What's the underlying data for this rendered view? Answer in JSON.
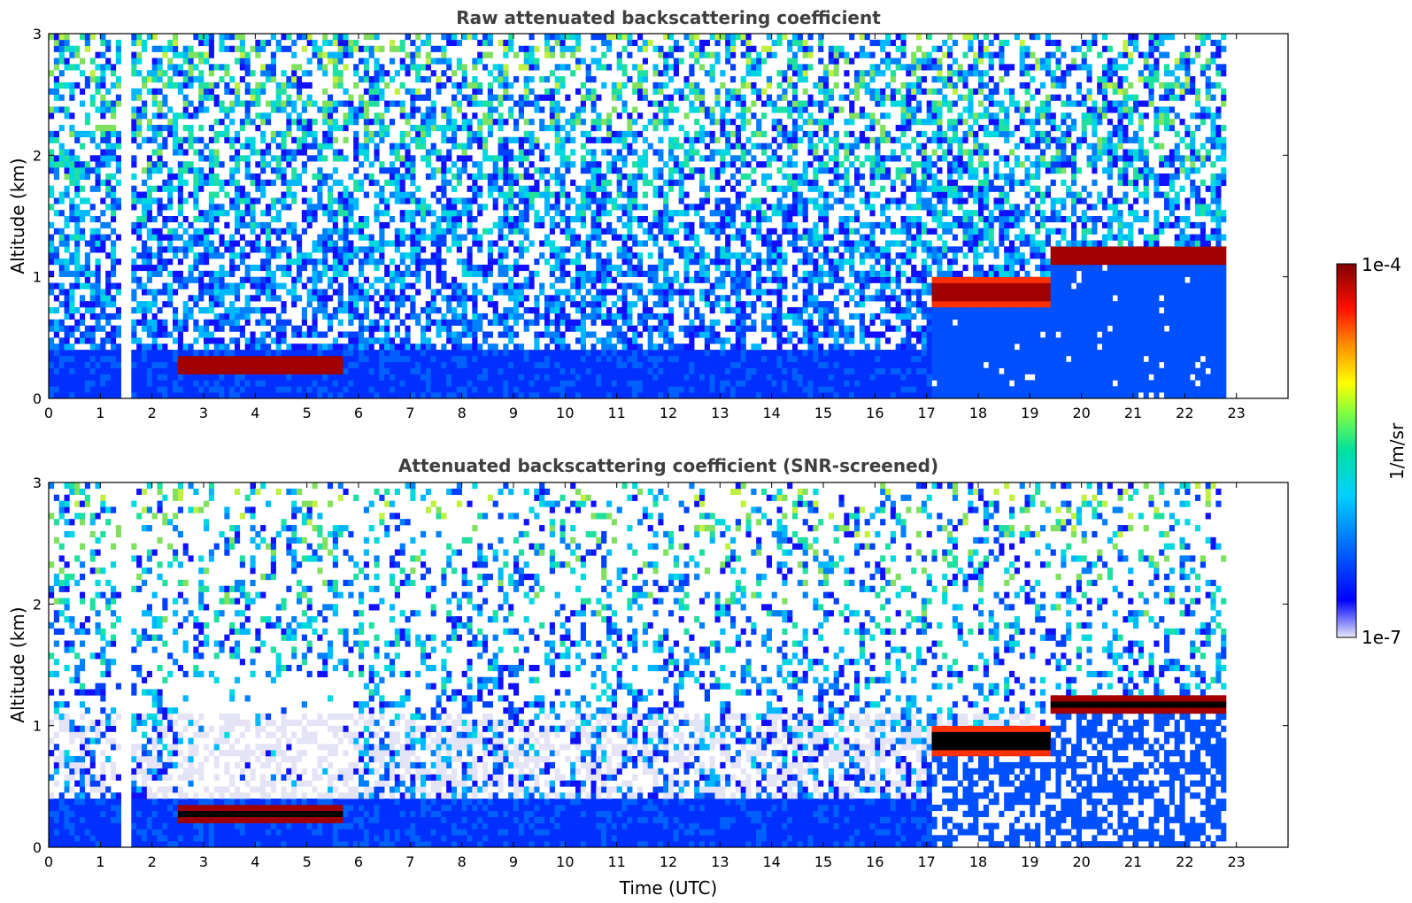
{
  "chart_data": [
    {
      "type": "heatmap",
      "panel": "raw",
      "title": "Raw attenuated backscattering coefficient",
      "xlabel": "",
      "ylabel": "Altitude (km)",
      "xlim": [
        0,
        24
      ],
      "ylim": [
        0,
        3
      ],
      "xticks": [
        "0",
        "1",
        "2",
        "3",
        "4",
        "5",
        "6",
        "7",
        "8",
        "9",
        "10",
        "11",
        "12",
        "13",
        "14",
        "15",
        "16",
        "17",
        "18",
        "19",
        "20",
        "21",
        "22",
        "23"
      ],
      "yticks": [
        "0",
        "1",
        "2",
        "3"
      ],
      "data_extent_hours": [
        0,
        22.8
      ],
      "data_gaps_hours": [
        [
          1.42,
          1.55
        ]
      ],
      "features": [
        {
          "description": "cloud layer",
          "t_start": 2.5,
          "t_end": 5.7,
          "alt_km": [
            0.2,
            0.35
          ],
          "value": "1e-4"
        },
        {
          "description": "cloud layer",
          "t_start": 17.1,
          "t_end": 19.4,
          "alt_km": [
            0.75,
            1.0
          ],
          "value": "1e-4"
        },
        {
          "description": "cloud layer",
          "t_start": 19.4,
          "t_end": 22.8,
          "alt_km": [
            1.1,
            1.25
          ],
          "value": "1e-4"
        }
      ]
    },
    {
      "type": "heatmap",
      "panel": "snr-screened",
      "title": "Attenuated backscattering coefficient (SNR-screened)",
      "xlabel": "Time (UTC)",
      "ylabel": "Altitude (km)",
      "xlim": [
        0,
        24
      ],
      "ylim": [
        0,
        3
      ],
      "xticks": [
        "0",
        "1",
        "2",
        "3",
        "4",
        "5",
        "6",
        "7",
        "8",
        "9",
        "10",
        "11",
        "12",
        "13",
        "14",
        "15",
        "16",
        "17",
        "18",
        "19",
        "20",
        "21",
        "22",
        "23"
      ],
      "yticks": [
        "0",
        "1",
        "2",
        "3"
      ],
      "data_extent_hours": [
        0,
        22.8
      ],
      "data_gaps_hours": [
        [
          1.42,
          1.55
        ]
      ],
      "features": [
        {
          "description": "cloud layer",
          "t_start": 2.5,
          "t_end": 5.7,
          "alt_km": [
            0.2,
            0.35
          ],
          "value": "1e-4"
        },
        {
          "description": "cloud layer",
          "t_start": 17.1,
          "t_end": 19.4,
          "alt_km": [
            0.75,
            1.0
          ],
          "value": "1e-4"
        },
        {
          "description": "cloud layer",
          "t_start": 19.4,
          "t_end": 22.8,
          "alt_km": [
            1.1,
            1.25
          ],
          "value": "1e-4"
        }
      ]
    }
  ],
  "colorbar": {
    "label": "1/m/sr",
    "min_label": "1e-7",
    "max_label": "1e-4",
    "colormap": "jet",
    "colors": [
      "#e8e8f4",
      "#0000ff",
      "#00c8ff",
      "#00e0b0",
      "#ffff00",
      "#ff8000",
      "#ff0000",
      "#800000"
    ]
  }
}
